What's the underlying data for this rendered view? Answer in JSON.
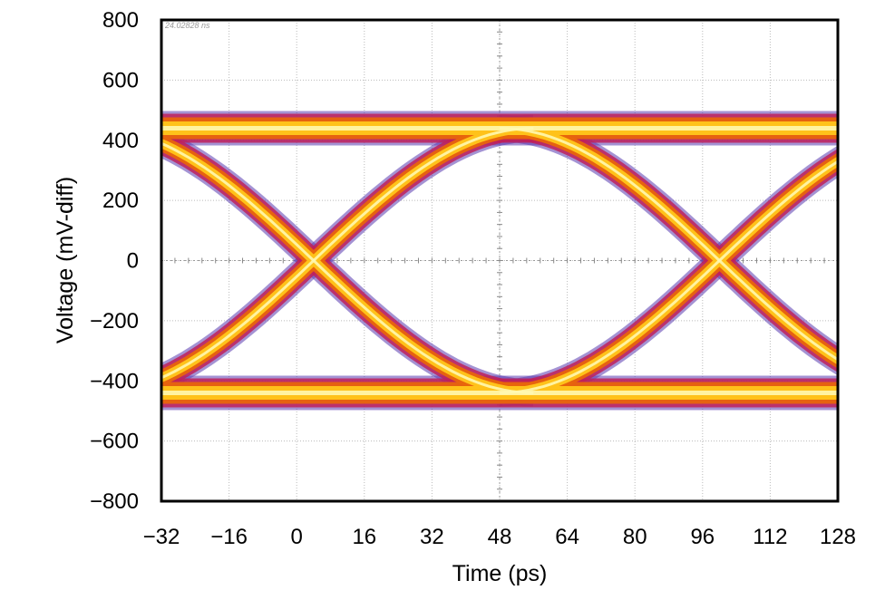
{
  "chart_data": {
    "type": "eye-diagram",
    "title": "",
    "xlabel": "Time (ps)",
    "ylabel": "Voltage (mV-diff)",
    "xlim": [
      -32,
      128
    ],
    "ylim": [
      -800,
      800
    ],
    "x_ticks": [
      -32,
      -16,
      0,
      16,
      32,
      48,
      64,
      80,
      96,
      112,
      128
    ],
    "x_tick_labels": [
      "−32",
      "−16",
      "0",
      "16",
      "32",
      "48",
      "64",
      "80",
      "96",
      "112",
      "128"
    ],
    "y_ticks": [
      800,
      600,
      400,
      200,
      0,
      -200,
      -400,
      -600,
      -800
    ],
    "y_tick_labels": [
      "800",
      "600",
      "400",
      "200",
      "0",
      "−200",
      "−400",
      "−600",
      "−800"
    ],
    "grid": true,
    "annotation": "24.02828 ns",
    "series": [
      {
        "name": "high-level",
        "x": [
          -32,
          128
        ],
        "y": [
          440,
          440
        ]
      },
      {
        "name": "low-level",
        "x": [
          -32,
          128
        ],
        "y": [
          -440,
          -440
        ]
      },
      {
        "name": "rising-edge-1",
        "x": [
          -32,
          0,
          48,
          56
        ],
        "y": [
          -420,
          0,
          420,
          440
        ]
      },
      {
        "name": "falling-edge-1",
        "x": [
          -32,
          0,
          48,
          56
        ],
        "y": [
          420,
          0,
          -420,
          -440
        ]
      },
      {
        "name": "rising-edge-2",
        "x": [
          56,
          96,
          128
        ],
        "y": [
          -440,
          0,
          380
        ]
      },
      {
        "name": "falling-edge-2",
        "x": [
          56,
          96,
          128
        ],
        "y": [
          440,
          0,
          -380
        ]
      }
    ],
    "crossing_points": [
      {
        "x": 0,
        "y": 0
      },
      {
        "x": 96,
        "y": 0
      }
    ],
    "colors": {
      "core": "#fff8b0",
      "inner": "#ffc21a",
      "mid": "#e8650c",
      "outer": "#c0205a",
      "fringe": "#5a3ab0",
      "grid": "#bbbbbb",
      "frame": "#000000"
    }
  }
}
